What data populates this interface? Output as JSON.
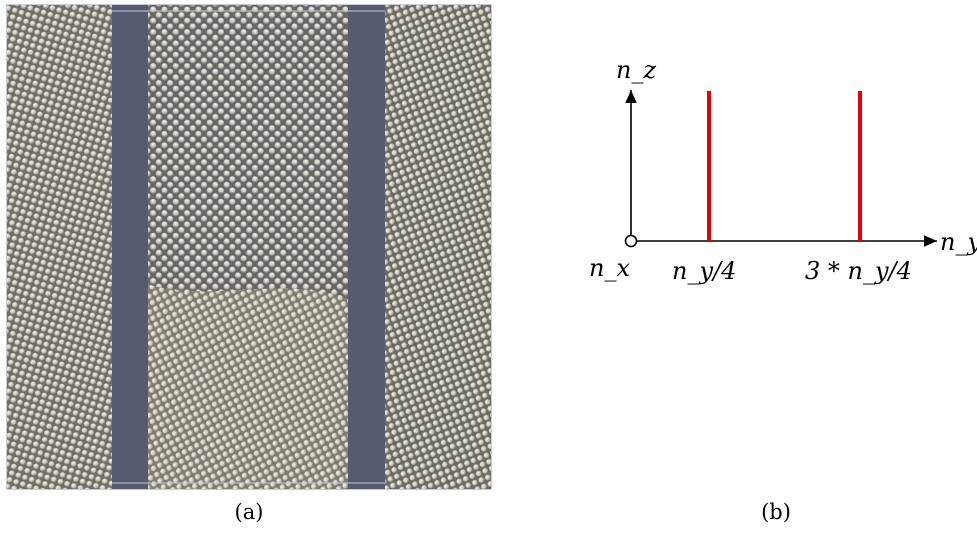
{
  "panel_a": {
    "caption": "(a)",
    "colors": {
      "background_band": "#565b72",
      "atom_light": "#d9d5c8",
      "atom_shadow": "#7c786c",
      "frame": "#c8cad4"
    },
    "atom_icon": "sphere-icon"
  },
  "panel_b": {
    "caption": "(b)",
    "axis_z_label": "n_z",
    "axis_y_label": "n_y",
    "origin_label": "n_x",
    "mark_1_label": "n_y/4",
    "mark_2_label": "3 * n_y/4",
    "colors": {
      "axis": "#000000",
      "boundary_line": "#e60000"
    }
  }
}
